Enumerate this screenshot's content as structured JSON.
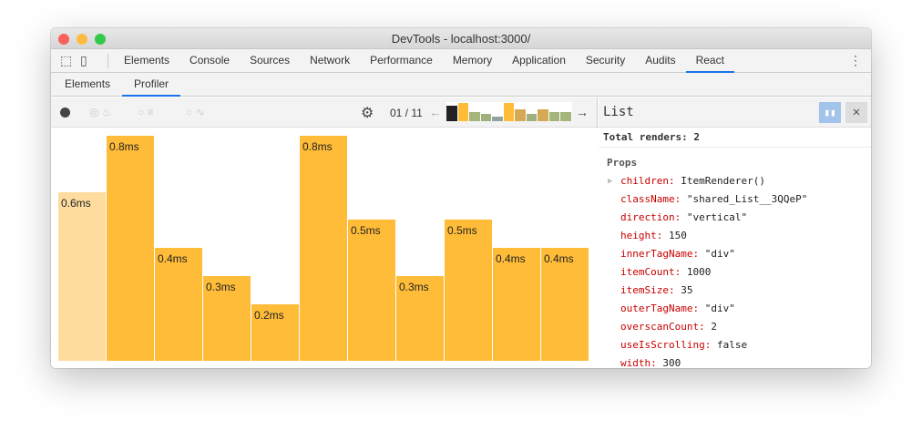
{
  "window": {
    "title": "DevTools - localhost:3000/"
  },
  "tabs": [
    "Elements",
    "Console",
    "Sources",
    "Network",
    "Performance",
    "Memory",
    "Application",
    "Security",
    "Audits",
    "React"
  ],
  "active_tab": "React",
  "subtabs": [
    "Elements",
    "Profiler"
  ],
  "active_subtab": "Profiler",
  "toolbar": {
    "commit_counter": "01 / 11"
  },
  "commits": [
    {
      "h": 1,
      "color": "#222222"
    },
    {
      "h": 1.15,
      "color": "#ffbc38"
    },
    {
      "h": 0.6,
      "color": "#a5b57c"
    },
    {
      "h": 0.45,
      "color": "#9fb07f"
    },
    {
      "h": 0.3,
      "color": "#8fa3a0"
    },
    {
      "h": 1.15,
      "color": "#ffbc38"
    },
    {
      "h": 0.75,
      "color": "#d6aa55"
    },
    {
      "h": 0.45,
      "color": "#9fb07f"
    },
    {
      "h": 0.75,
      "color": "#d6aa55"
    },
    {
      "h": 0.6,
      "color": "#a5b57c"
    },
    {
      "h": 0.6,
      "color": "#a5b57c"
    }
  ],
  "flame_bars": [
    {
      "label": "0.6ms",
      "value": 0.6,
      "selected": true
    },
    {
      "label": "0.8ms",
      "value": 0.8
    },
    {
      "label": "0.4ms",
      "value": 0.4
    },
    {
      "label": "0.3ms",
      "value": 0.3
    },
    {
      "label": "0.2ms",
      "value": 0.2
    },
    {
      "label": "0.8ms",
      "value": 0.8
    },
    {
      "label": "0.5ms",
      "value": 0.5
    },
    {
      "label": "0.3ms",
      "value": 0.3
    },
    {
      "label": "0.5ms",
      "value": 0.5
    },
    {
      "label": "0.4ms",
      "value": 0.4
    },
    {
      "label": "0.4ms",
      "value": 0.4
    }
  ],
  "panel": {
    "component": "List",
    "total_renders": "Total renders: 2",
    "props_heading": "Props",
    "props": [
      {
        "key": "children:",
        "value": "ItemRenderer()"
      },
      {
        "key": "className:",
        "value": "\"shared_List__3QQeP\""
      },
      {
        "key": "direction:",
        "value": "\"vertical\""
      },
      {
        "key": "height:",
        "value": "150"
      },
      {
        "key": "innerTagName:",
        "value": "\"div\""
      },
      {
        "key": "itemCount:",
        "value": "1000"
      },
      {
        "key": "itemSize:",
        "value": "35"
      },
      {
        "key": "outerTagName:",
        "value": "\"div\""
      },
      {
        "key": "overscanCount:",
        "value": "2"
      },
      {
        "key": "useIsScrolling:",
        "value": "false"
      },
      {
        "key": "width:",
        "value": "300"
      }
    ]
  },
  "colors": {
    "bar": "#ffbc38",
    "bar_selected": "#fedc9d",
    "accent": "#1a73e8",
    "prop_key": "#c80000"
  }
}
